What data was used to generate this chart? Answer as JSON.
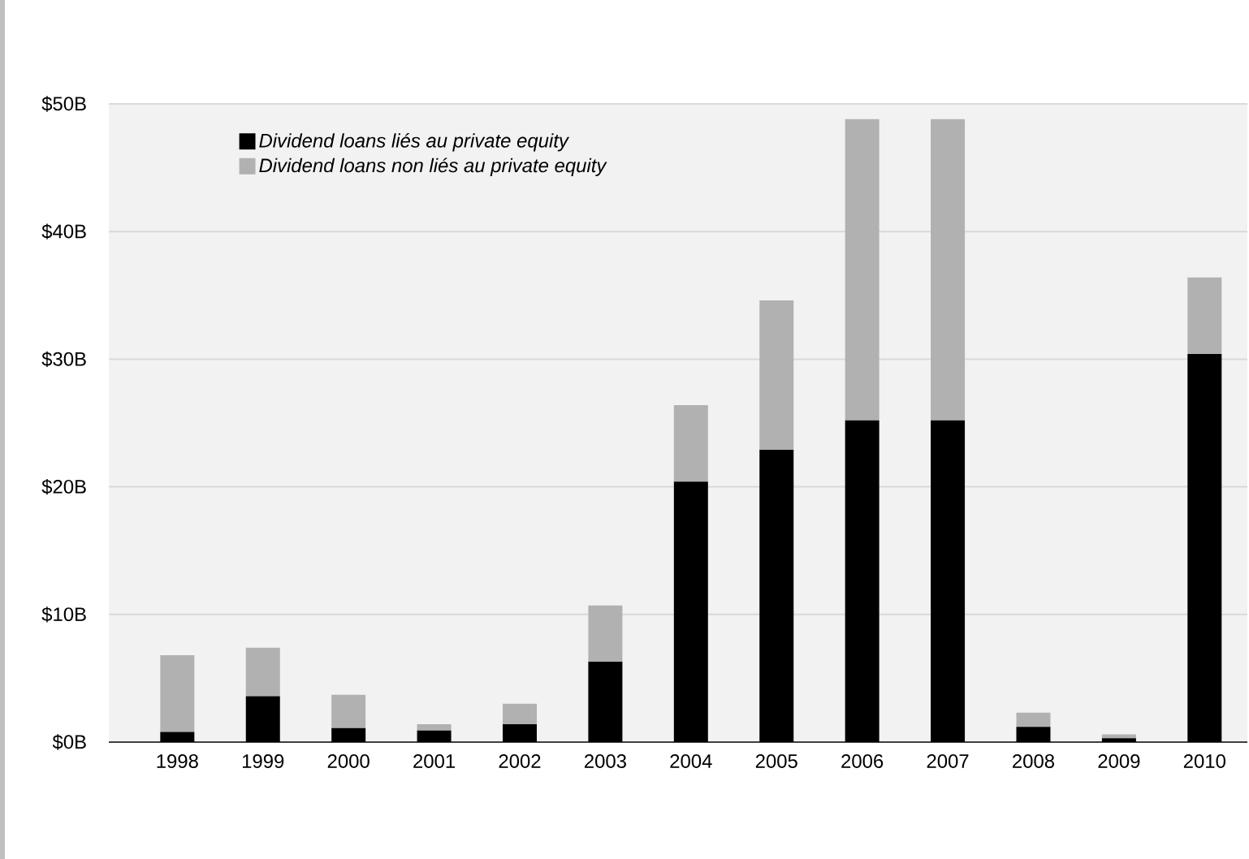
{
  "chart_data": {
    "type": "bar",
    "stacked": true,
    "categories": [
      "1998",
      "1999",
      "2000",
      "2001",
      "2002",
      "2003",
      "2004",
      "2005",
      "2006",
      "2007",
      "2008",
      "2009",
      "2010"
    ],
    "series": [
      {
        "name": "Dividend loans liés au private equity",
        "color": "#000000",
        "values": [
          0.8,
          3.6,
          1.1,
          0.9,
          1.4,
          6.3,
          20.4,
          22.9,
          25.2,
          25.2,
          1.2,
          0.3,
          30.4
        ]
      },
      {
        "name": "Dividend loans non liés au private equity",
        "color": "#b1b1b2",
        "values": [
          6.0,
          3.8,
          2.6,
          0.5,
          1.6,
          4.4,
          6.0,
          11.7,
          23.6,
          23.6,
          1.1,
          0.3,
          6.0
        ]
      }
    ],
    "ylim": [
      0,
      50
    ],
    "yticks": [
      {
        "value": 0,
        "label": "$0B"
      },
      {
        "value": 10,
        "label": "$10B"
      },
      {
        "value": 20,
        "label": "$20B"
      },
      {
        "value": 30,
        "label": "$30B"
      },
      {
        "value": 40,
        "label": "$40B"
      },
      {
        "value": 50,
        "label": "$50B"
      }
    ],
    "grid": "y",
    "legend": "top left"
  }
}
